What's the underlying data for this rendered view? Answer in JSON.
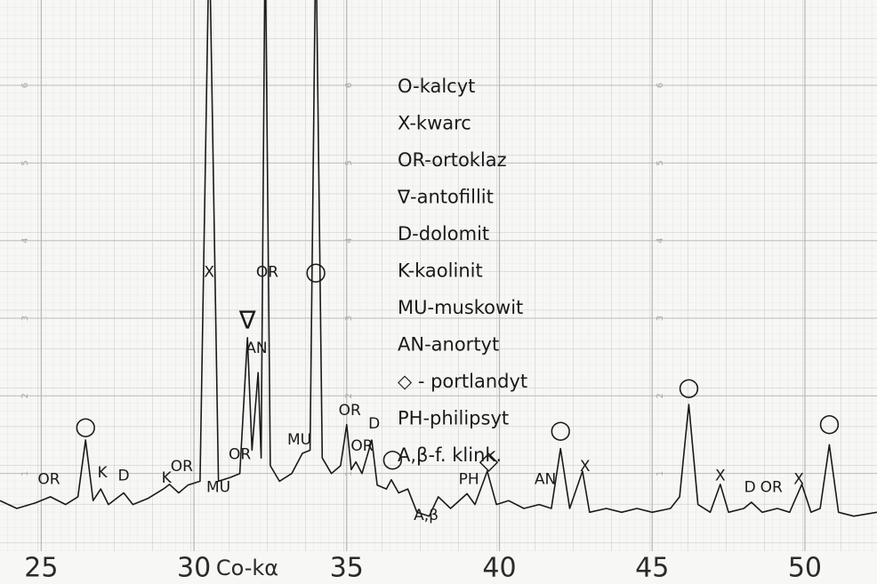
{
  "chart_data": {
    "type": "line",
    "x_label": "Co-kα",
    "xlim": [
      23.65,
      52.36
    ],
    "xticks": [
      25,
      30,
      35,
      40,
      45,
      50
    ],
    "ylim": [
      0,
      7.1
    ],
    "yticks": [
      1,
      2,
      3,
      4,
      5,
      6
    ],
    "grid": true,
    "color": "#1a1a1a",
    "x": [
      23.65,
      24.2,
      24.8,
      25.3,
      25.8,
      26.2,
      26.45,
      26.7,
      26.95,
      27.2,
      27.7,
      28.0,
      28.5,
      29.0,
      29.2,
      29.5,
      29.8,
      30.2,
      30.5,
      30.8,
      31.2,
      31.5,
      31.75,
      31.9,
      32.1,
      32.2,
      32.33,
      32.5,
      32.8,
      33.2,
      33.55,
      33.8,
      33.99,
      34.2,
      34.5,
      34.8,
      35.0,
      35.15,
      35.3,
      35.5,
      35.82,
      36.0,
      36.3,
      36.46,
      36.7,
      37.0,
      37.3,
      37.7,
      38.0,
      38.4,
      38.94,
      39.2,
      39.6,
      39.9,
      40.3,
      40.8,
      41.3,
      41.7,
      42.0,
      42.3,
      42.72,
      42.95,
      43.5,
      44.0,
      44.5,
      45.0,
      45.6,
      45.9,
      46.2,
      46.5,
      46.9,
      47.23,
      47.5,
      48.0,
      48.25,
      48.6,
      49.1,
      49.5,
      49.9,
      50.2,
      50.5,
      50.8,
      51.1,
      51.6,
      52.36
    ],
    "values": [
      0.65,
      0.55,
      0.62,
      0.7,
      0.6,
      0.7,
      1.43,
      0.65,
      0.8,
      0.6,
      0.75,
      0.6,
      0.68,
      0.8,
      0.86,
      0.75,
      0.85,
      0.9,
      8,
      0.9,
      0.95,
      1.0,
      2.75,
      1.3,
      2.3,
      1.2,
      8,
      1.1,
      0.9,
      1.0,
      1.26,
      1.3,
      8,
      1.2,
      1.0,
      1.1,
      1.63,
      1.05,
      1.15,
      1.0,
      1.43,
      0.85,
      0.8,
      0.92,
      0.75,
      0.8,
      0.5,
      0.45,
      0.7,
      0.55,
      0.74,
      0.6,
      1.03,
      0.6,
      0.65,
      0.55,
      0.6,
      0.55,
      1.32,
      0.55,
      1.03,
      0.5,
      0.55,
      0.5,
      0.55,
      0.5,
      0.55,
      0.7,
      1.89,
      0.6,
      0.5,
      0.86,
      0.5,
      0.55,
      0.63,
      0.5,
      0.55,
      0.5,
      0.86,
      0.5,
      0.55,
      1.37,
      0.5,
      0.45,
      0.5
    ],
    "annotations": [
      {
        "text": "OR",
        "x": 25.25,
        "y": 0.92
      },
      {
        "text": "○",
        "x": 26.45,
        "y": 1.6
      },
      {
        "text": "K",
        "x": 27.0,
        "y": 1.01
      },
      {
        "text": "D",
        "x": 27.7,
        "y": 0.97
      },
      {
        "text": "K",
        "x": 29.1,
        "y": 0.94
      },
      {
        "text": "OR",
        "x": 29.6,
        "y": 1.09
      },
      {
        "text": "MU",
        "x": 30.8,
        "y": 0.82
      },
      {
        "text": "X",
        "x": 30.5,
        "y": 3.59
      },
      {
        "text": "OR",
        "x": 31.5,
        "y": 1.24
      },
      {
        "text": "∇",
        "x": 31.75,
        "y": 2.96
      },
      {
        "text": "AN",
        "x": 32.05,
        "y": 2.61
      },
      {
        "text": "OR",
        "x": 32.4,
        "y": 3.59
      },
      {
        "text": "○",
        "x": 33.99,
        "y": 3.59
      },
      {
        "text": "MU",
        "x": 33.45,
        "y": 1.43
      },
      {
        "text": "OR",
        "x": 35.1,
        "y": 1.81
      },
      {
        "text": "OR",
        "x": 35.5,
        "y": 1.35
      },
      {
        "text": "D",
        "x": 35.9,
        "y": 1.64
      },
      {
        "text": "○",
        "x": 36.5,
        "y": 1.18
      },
      {
        "text": "A,β",
        "x": 37.6,
        "y": 0.46
      },
      {
        "text": "PH",
        "x": 39.0,
        "y": 0.92
      },
      {
        "text": "◇",
        "x": 39.65,
        "y": 1.15
      },
      {
        "text": "AN",
        "x": 41.5,
        "y": 0.92
      },
      {
        "text": "○",
        "x": 42.0,
        "y": 1.55
      },
      {
        "text": "X",
        "x": 42.8,
        "y": 1.09
      },
      {
        "text": "○",
        "x": 46.2,
        "y": 2.1
      },
      {
        "text": "X",
        "x": 47.23,
        "y": 0.97
      },
      {
        "text": "D",
        "x": 48.2,
        "y": 0.82
      },
      {
        "text": "OR",
        "x": 48.9,
        "y": 0.82
      },
      {
        "text": "X",
        "x": 49.8,
        "y": 0.92
      },
      {
        "text": "○",
        "x": 50.8,
        "y": 1.64
      }
    ],
    "legend": [
      "O-kalcyt",
      "X-kwarc",
      "OR-ortoklaz",
      "∇-antofillit",
      "D-dolomit",
      "K-kaolinit",
      "MU-muskowit",
      "AN-anortyt",
      "◇ - portlandyt",
      "PH-philipsyt",
      "A,β-f. klink."
    ]
  }
}
